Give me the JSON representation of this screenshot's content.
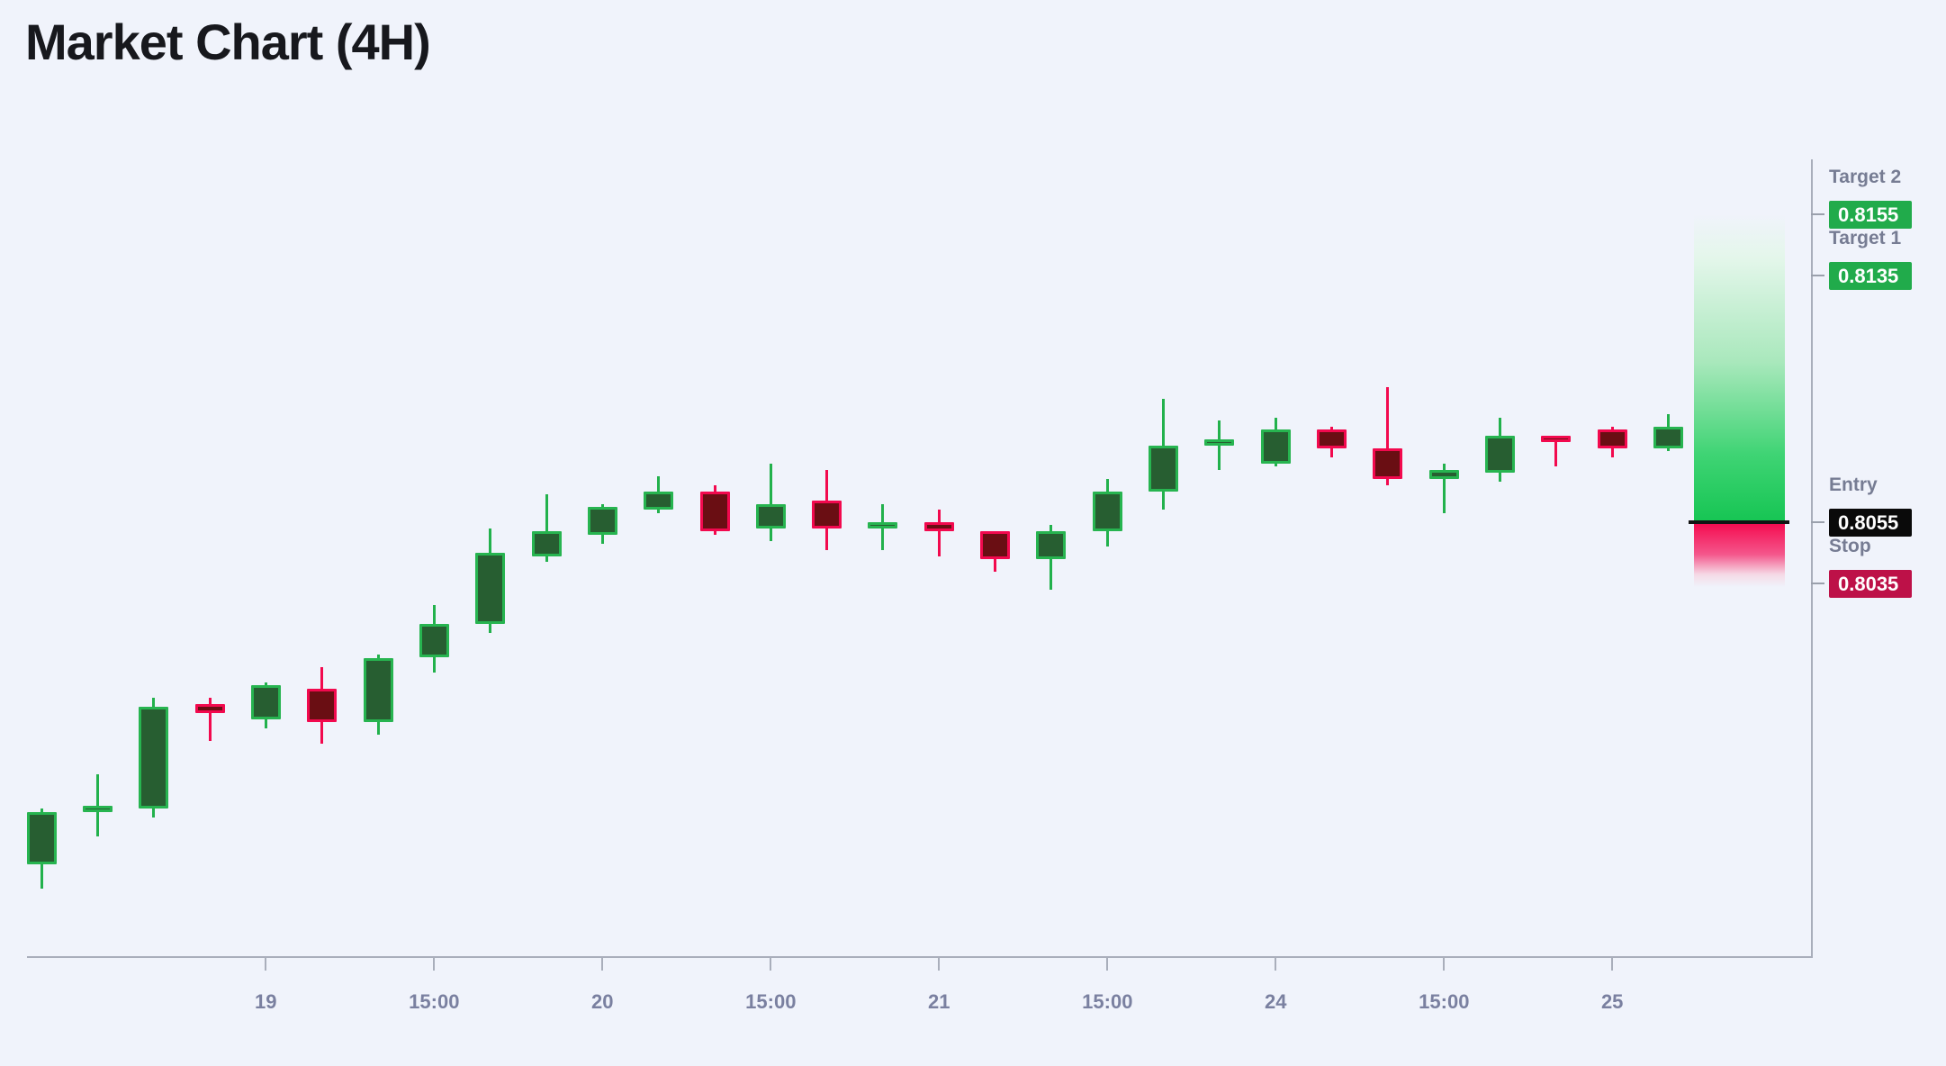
{
  "title": "Market Chart (4H)",
  "chart_data": {
    "type": "candlestick",
    "title": "Market Chart (4H)",
    "timeframe": "4H",
    "grid": false,
    "x_axis": {
      "tick_labels": [
        {
          "candle_index": 4,
          "label": "19"
        },
        {
          "candle_index": 7,
          "label": "15:00"
        },
        {
          "candle_index": 10,
          "label": "20"
        },
        {
          "candle_index": 13,
          "label": "15:00"
        },
        {
          "candle_index": 16,
          "label": "21"
        },
        {
          "candle_index": 19,
          "label": "15:00"
        },
        {
          "candle_index": 22,
          "label": "24"
        },
        {
          "candle_index": 25,
          "label": "15:00"
        },
        {
          "candle_index": 28,
          "label": "25"
        }
      ]
    },
    "y_range": [
      0.793,
      0.8175
    ],
    "candles": [
      {
        "o": 0.7944,
        "h": 0.7962,
        "l": 0.7936,
        "c": 0.7961
      },
      {
        "o": 0.7961,
        "h": 0.7973,
        "l": 0.7953,
        "c": 0.7963
      },
      {
        "o": 0.7962,
        "h": 0.7998,
        "l": 0.7959,
        "c": 0.7995
      },
      {
        "o": 0.7996,
        "h": 0.7998,
        "l": 0.7984,
        "c": 0.7993
      },
      {
        "o": 0.7991,
        "h": 0.8003,
        "l": 0.7988,
        "c": 0.8002
      },
      {
        "o": 0.8001,
        "h": 0.8008,
        "l": 0.7983,
        "c": 0.799
      },
      {
        "o": 0.799,
        "h": 0.8012,
        "l": 0.7986,
        "c": 0.8011
      },
      {
        "o": 0.8011,
        "h": 0.8028,
        "l": 0.8006,
        "c": 0.8022
      },
      {
        "o": 0.8022,
        "h": 0.8053,
        "l": 0.8019,
        "c": 0.8045
      },
      {
        "o": 0.8044,
        "h": 0.8064,
        "l": 0.8042,
        "c": 0.8052
      },
      {
        "o": 0.8051,
        "h": 0.8061,
        "l": 0.8048,
        "c": 0.806
      },
      {
        "o": 0.8059,
        "h": 0.807,
        "l": 0.8058,
        "c": 0.8065
      },
      {
        "o": 0.8065,
        "h": 0.8067,
        "l": 0.8051,
        "c": 0.8052
      },
      {
        "o": 0.8053,
        "h": 0.8074,
        "l": 0.8049,
        "c": 0.8061
      },
      {
        "o": 0.8062,
        "h": 0.8072,
        "l": 0.8046,
        "c": 0.8053
      },
      {
        "o": 0.8053,
        "h": 0.8061,
        "l": 0.8046,
        "c": 0.8055
      },
      {
        "o": 0.8055,
        "h": 0.8059,
        "l": 0.8044,
        "c": 0.8052
      },
      {
        "o": 0.8052,
        "h": 0.8052,
        "l": 0.8039,
        "c": 0.8043
      },
      {
        "o": 0.8043,
        "h": 0.8054,
        "l": 0.8033,
        "c": 0.8052
      },
      {
        "o": 0.8052,
        "h": 0.8069,
        "l": 0.8047,
        "c": 0.8065
      },
      {
        "o": 0.8065,
        "h": 0.8095,
        "l": 0.8059,
        "c": 0.808
      },
      {
        "o": 0.808,
        "h": 0.8088,
        "l": 0.8072,
        "c": 0.8082
      },
      {
        "o": 0.8074,
        "h": 0.8089,
        "l": 0.8073,
        "c": 0.8085
      },
      {
        "o": 0.8085,
        "h": 0.8086,
        "l": 0.8076,
        "c": 0.8079
      },
      {
        "o": 0.8079,
        "h": 0.8099,
        "l": 0.8067,
        "c": 0.8069
      },
      {
        "o": 0.8069,
        "h": 0.8074,
        "l": 0.8058,
        "c": 0.8072
      },
      {
        "o": 0.8071,
        "h": 0.8089,
        "l": 0.8068,
        "c": 0.8083
      },
      {
        "o": 0.8083,
        "h": 0.8083,
        "l": 0.8073,
        "c": 0.8081
      },
      {
        "o": 0.8085,
        "h": 0.8086,
        "l": 0.8076,
        "c": 0.8079
      },
      {
        "o": 0.8079,
        "h": 0.809,
        "l": 0.8078,
        "c": 0.8086
      }
    ],
    "levels": [
      {
        "id": "target2",
        "label": "Target 2",
        "value": "0.8155",
        "badge": "target"
      },
      {
        "id": "target1",
        "label": "Target 1",
        "value": "0.8135",
        "badge": "target"
      },
      {
        "id": "entry",
        "label": "Entry",
        "value": "0.8055",
        "badge": "entry"
      },
      {
        "id": "stop",
        "label": "Stop",
        "value": "0.8035",
        "badge": "stop"
      }
    ],
    "colors": {
      "background": "#f0f3fb",
      "bull_border": "#27b450",
      "bull_fill": "#275e31",
      "bull_wick": "#22b14c",
      "bear_border": "#f2094e",
      "bear_fill": "#6a0e13",
      "bear_wick": "#f2094e",
      "profit_zone_green": "#16c553",
      "loss_zone_red": "#f50d51",
      "entry_line": "#141414",
      "target_badge_bg": "#21ab4b",
      "entry_badge_bg": "#0a0a0a",
      "stop_badge_bg": "#bd1148",
      "axis": "#a9aebb",
      "label_text": "#767c93"
    }
  }
}
